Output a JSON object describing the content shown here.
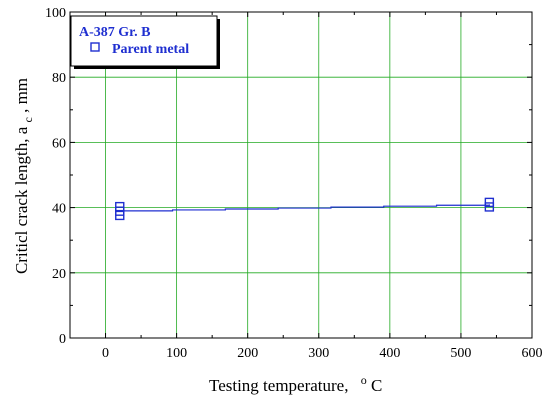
{
  "chart_data": {
    "type": "scatter",
    "x": [
      20,
      20,
      20,
      540,
      540
    ],
    "series": [
      {
        "name": "Parent metal",
        "x": [
          20,
          20,
          20,
          540,
          540
        ],
        "y": [
          40.3,
          38.9,
          37.6,
          41.6,
          40.2
        ],
        "marker": "open-square"
      }
    ],
    "fit_line": {
      "x": [
        20,
        540
      ],
      "y": [
        39.0,
        41.0
      ]
    },
    "legend_title": "A-387 Gr. B",
    "xlabel": "Testing temperature,",
    "xlabel_unit_super": "o",
    "xlabel_unit": "C",
    "ylabel": "Criticl crack length, a",
    "ylabel_sub": "c",
    "ylabel_suffix": ", mm",
    "xlim": [
      -50,
      600
    ],
    "ylim": [
      0,
      100
    ],
    "xticks": [
      "0",
      "100",
      "200",
      "300",
      "400",
      "500",
      "600"
    ],
    "yticks": [
      "0",
      "20",
      "40",
      "60",
      "80",
      "100"
    ],
    "grid": true,
    "legend_position": "top-left",
    "colors": {
      "series": "#1f2fd0",
      "grid": "#22aa22",
      "axis": "#000000"
    }
  }
}
